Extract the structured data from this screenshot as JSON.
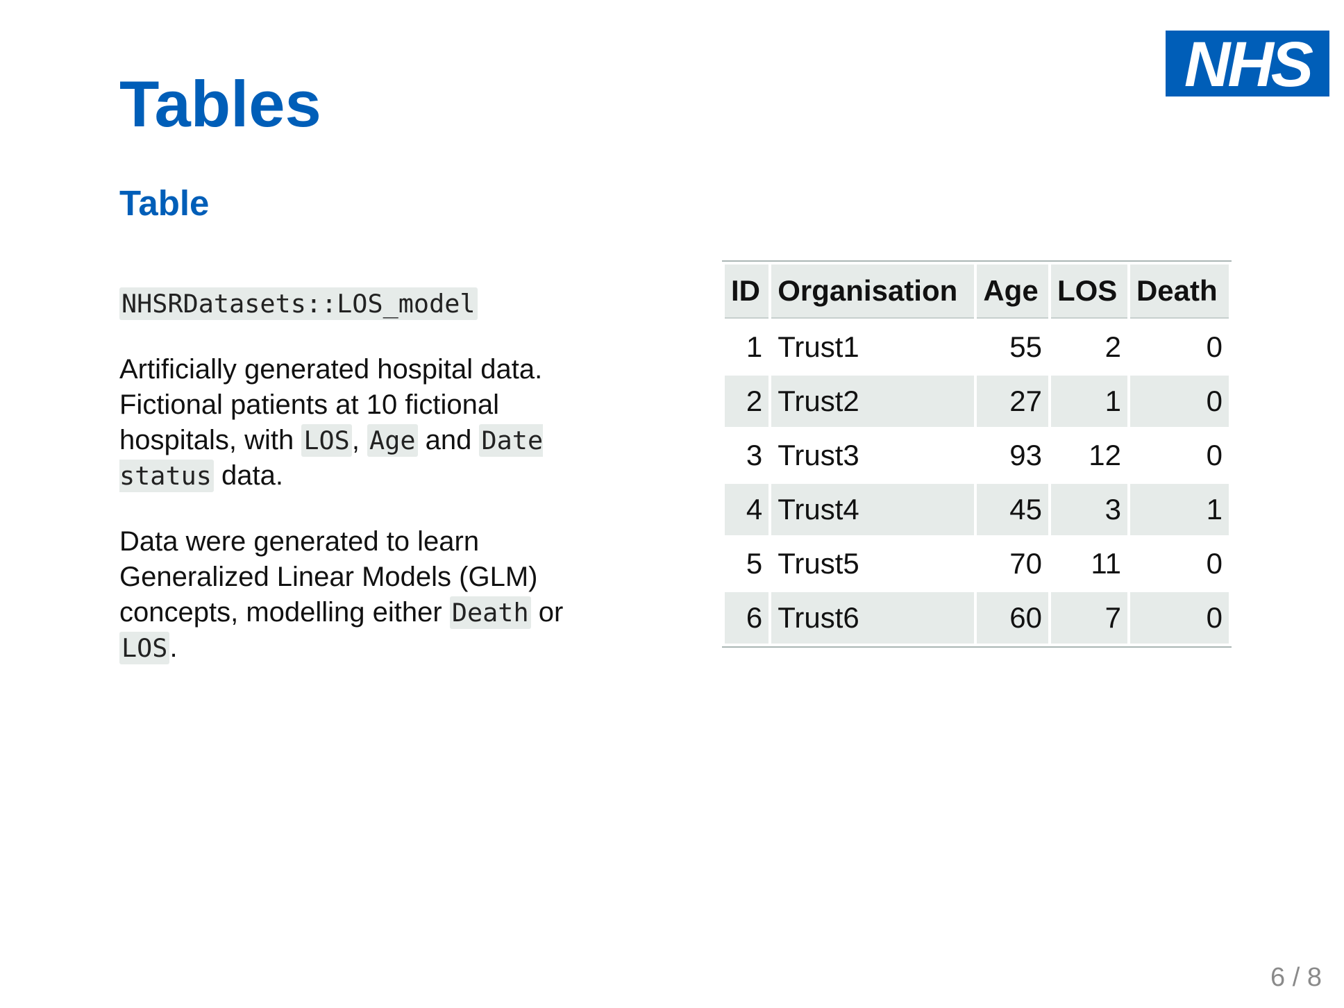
{
  "logo": {
    "text": "NHS",
    "color": "#005EB8"
  },
  "title": "Tables",
  "subtitle": "Table",
  "dataset_name": "NHSRDatasets::LOS_model",
  "paragraph1": {
    "text1": "Artificially generated hospital data. Fictional patients at 10 fictional hospitals, with ",
    "code1": "LOS",
    "text2": ", ",
    "code2": "Age",
    "text3": " and ",
    "code3": "Date status",
    "text4": " data."
  },
  "paragraph2": {
    "text1": "Data were generated to learn Generalized Linear Models (GLM) concepts, modelling either ",
    "code1": "Death",
    "text2": " or ",
    "code2": "LOS",
    "text3": "."
  },
  "table": {
    "headers": [
      "ID",
      "Organisation",
      "Age",
      "LOS",
      "Death"
    ],
    "rows": [
      [
        "1",
        "Trust1",
        "55",
        "2",
        "0"
      ],
      [
        "2",
        "Trust2",
        "27",
        "1",
        "0"
      ],
      [
        "3",
        "Trust3",
        "93",
        "12",
        "0"
      ],
      [
        "4",
        "Trust4",
        "45",
        "3",
        "1"
      ],
      [
        "5",
        "Trust5",
        "70",
        "11",
        "0"
      ],
      [
        "6",
        "Trust6",
        "60",
        "7",
        "0"
      ]
    ]
  },
  "page_number": "6 / 8"
}
